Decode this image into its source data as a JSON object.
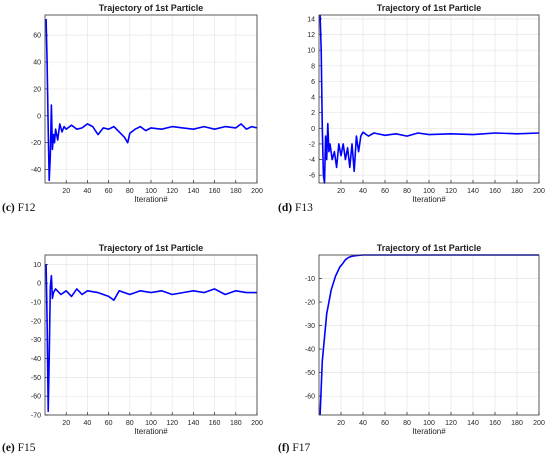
{
  "chart_data": [
    {
      "type": "line",
      "caption_label": "(c)",
      "caption_text": "F12",
      "title": "Trajectory of 1st Particle",
      "xlabel": "Iteration#",
      "ylabel": "",
      "xlim": [
        0,
        200
      ],
      "ylim": [
        -50,
        75
      ],
      "xticks": [
        20,
        40,
        60,
        80,
        100,
        120,
        140,
        160,
        180,
        200
      ],
      "yticks": [
        -40,
        -20,
        0,
        20,
        40,
        60
      ],
      "grid": true,
      "color": "#0000ff",
      "series": [
        {
          "values": [
            [
              1,
              72
            ],
            [
              2,
              40
            ],
            [
              3,
              -10
            ],
            [
              4,
              -48
            ],
            [
              5,
              -30
            ],
            [
              6,
              8
            ],
            [
              7,
              -25
            ],
            [
              8,
              -14
            ],
            [
              9,
              -20
            ],
            [
              10,
              -10
            ],
            [
              12,
              -18
            ],
            [
              14,
              -6
            ],
            [
              16,
              -12
            ],
            [
              18,
              -8
            ],
            [
              20,
              -10
            ],
            [
              25,
              -7
            ],
            [
              30,
              -10
            ],
            [
              35,
              -9
            ],
            [
              40,
              -6
            ],
            [
              45,
              -8
            ],
            [
              50,
              -14
            ],
            [
              55,
              -9
            ],
            [
              60,
              -10
            ],
            [
              65,
              -8
            ],
            [
              70,
              -12
            ],
            [
              75,
              -16
            ],
            [
              78,
              -20
            ],
            [
              80,
              -13
            ],
            [
              85,
              -10
            ],
            [
              90,
              -8
            ],
            [
              95,
              -11
            ],
            [
              100,
              -9
            ],
            [
              110,
              -10
            ],
            [
              120,
              -8
            ],
            [
              130,
              -9
            ],
            [
              140,
              -10
            ],
            [
              150,
              -8
            ],
            [
              160,
              -10
            ],
            [
              170,
              -8
            ],
            [
              180,
              -9
            ],
            [
              185,
              -6
            ],
            [
              190,
              -10
            ],
            [
              195,
              -8
            ],
            [
              200,
              -9
            ]
          ]
        }
      ]
    },
    {
      "type": "line",
      "caption_label": "(d)",
      "caption_text": "F13",
      "title": "Trajectory of 1st Particle",
      "xlabel": "Iteration#",
      "ylabel": "",
      "xlim": [
        0,
        200
      ],
      "ylim": [
        -7,
        14.5
      ],
      "xticks": [
        20,
        40,
        60,
        80,
        100,
        120,
        140,
        160,
        180,
        200
      ],
      "yticks": [
        -6,
        -4,
        -2,
        0,
        2,
        4,
        6,
        8,
        10,
        12,
        14
      ],
      "grid": true,
      "color": "#0000ff",
      "series": [
        {
          "values": [
            [
              1,
              14.5
            ],
            [
              2,
              10
            ],
            [
              3,
              0
            ],
            [
              4,
              -6
            ],
            [
              5,
              -7
            ],
            [
              6,
              -1
            ],
            [
              7,
              -4
            ],
            [
              8,
              0.6
            ],
            [
              9,
              -3
            ],
            [
              10,
              -2
            ],
            [
              12,
              -4
            ],
            [
              14,
              -3
            ],
            [
              16,
              -5
            ],
            [
              18,
              -2
            ],
            [
              20,
              -3.5
            ],
            [
              22,
              -2
            ],
            [
              24,
              -4
            ],
            [
              26,
              -2.5
            ],
            [
              28,
              -5
            ],
            [
              30,
              -2
            ],
            [
              32,
              -5.5
            ],
            [
              34,
              -1
            ],
            [
              36,
              -3
            ],
            [
              38,
              -1
            ],
            [
              40,
              -0.5
            ],
            [
              45,
              -1
            ],
            [
              50,
              -0.6
            ],
            [
              60,
              -0.9
            ],
            [
              70,
              -0.7
            ],
            [
              80,
              -1
            ],
            [
              90,
              -0.6
            ],
            [
              100,
              -0.8
            ],
            [
              120,
              -0.7
            ],
            [
              140,
              -0.8
            ],
            [
              160,
              -0.6
            ],
            [
              180,
              -0.7
            ],
            [
              200,
              -0.6
            ]
          ]
        }
      ]
    },
    {
      "type": "line",
      "caption_label": "(e)",
      "caption_text": "F15",
      "title": "Trajectory of 1st Particle",
      "xlabel": "Iteration#",
      "ylabel": "",
      "xlim": [
        0,
        200
      ],
      "ylim": [
        -70,
        15
      ],
      "xticks": [
        20,
        40,
        60,
        80,
        100,
        120,
        140,
        160,
        180,
        200
      ],
      "yticks": [
        -70,
        -60,
        -50,
        -40,
        -30,
        -20,
        -10,
        0,
        10
      ],
      "grid": true,
      "color": "#0000ff",
      "series": [
        {
          "values": [
            [
              1,
              10
            ],
            [
              2,
              -20
            ],
            [
              3,
              -68
            ],
            [
              4,
              -40
            ],
            [
              5,
              -2
            ],
            [
              6,
              4
            ],
            [
              7,
              -8
            ],
            [
              8,
              -5
            ],
            [
              10,
              -3
            ],
            [
              15,
              -6
            ],
            [
              20,
              -4
            ],
            [
              25,
              -7
            ],
            [
              30,
              -3
            ],
            [
              35,
              -6
            ],
            [
              40,
              -4
            ],
            [
              50,
              -5
            ],
            [
              60,
              -7
            ],
            [
              65,
              -9
            ],
            [
              70,
              -4
            ],
            [
              80,
              -6
            ],
            [
              90,
              -4
            ],
            [
              100,
              -5
            ],
            [
              110,
              -4
            ],
            [
              120,
              -6
            ],
            [
              130,
              -5
            ],
            [
              140,
              -4
            ],
            [
              150,
              -5
            ],
            [
              160,
              -3
            ],
            [
              170,
              -6
            ],
            [
              180,
              -4
            ],
            [
              190,
              -5
            ],
            [
              200,
              -5
            ]
          ]
        }
      ]
    },
    {
      "type": "line",
      "caption_label": "(f)",
      "caption_text": "F17",
      "title": "Trajectory of 1st Particle",
      "xlabel": "Iteration#",
      "ylabel": "",
      "xlim": [
        0,
        200
      ],
      "ylim": [
        -68,
        0
      ],
      "xticks": [
        20,
        40,
        60,
        80,
        100,
        120,
        140,
        160,
        180,
        200
      ],
      "yticks": [
        -60,
        -50,
        -40,
        -30,
        -20,
        -10
      ],
      "grid": true,
      "color": "#0000ff",
      "series": [
        {
          "values": [
            [
              1,
              -68
            ],
            [
              3,
              -45
            ],
            [
              5,
              -35
            ],
            [
              7,
              -25
            ],
            [
              9,
              -20
            ],
            [
              11,
              -15
            ],
            [
              13,
              -12
            ],
            [
              15,
              -9
            ],
            [
              17,
              -7
            ],
            [
              19,
              -5
            ],
            [
              21,
              -4
            ],
            [
              24,
              -2
            ],
            [
              27,
              -1
            ],
            [
              30,
              -0.5
            ],
            [
              35,
              -0.2
            ],
            [
              40,
              0
            ],
            [
              60,
              0
            ],
            [
              80,
              0
            ],
            [
              100,
              0
            ],
            [
              120,
              0
            ],
            [
              140,
              0
            ],
            [
              160,
              0
            ],
            [
              180,
              0
            ],
            [
              200,
              0
            ]
          ]
        }
      ]
    }
  ]
}
